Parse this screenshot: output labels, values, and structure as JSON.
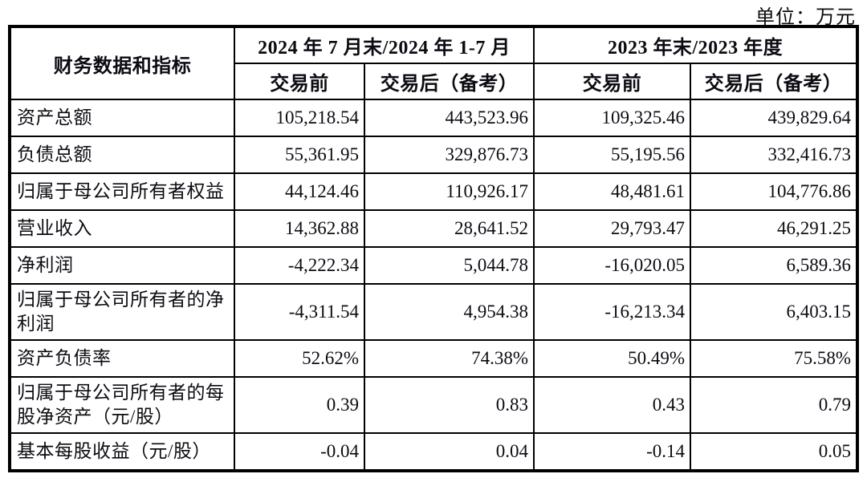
{
  "unit_label": "单位：万元",
  "table": {
    "corner_header": "财务数据和指标",
    "col_groups": [
      {
        "label": "2024 年 7 月末/2024 年 1-7 月",
        "sub": [
          "交易前",
          "交易后（备考）"
        ]
      },
      {
        "label": "2023 年末/2023 年度",
        "sub": [
          "交易前",
          "交易后（备考）"
        ]
      }
    ],
    "rows": [
      {
        "label": "资产总额",
        "values": [
          "105,218.54",
          "443,523.96",
          "109,325.46",
          "439,829.64"
        ]
      },
      {
        "label": "负债总额",
        "values": [
          "55,361.95",
          "329,876.73",
          "55,195.56",
          "332,416.73"
        ]
      },
      {
        "label": "归属于母公司所有者权益",
        "values": [
          "44,124.46",
          "110,926.17",
          "48,481.61",
          "104,776.86"
        ]
      },
      {
        "label": "营业收入",
        "values": [
          "14,362.88",
          "28,641.52",
          "29,793.47",
          "46,291.25"
        ]
      },
      {
        "label": "净利润",
        "values": [
          "-4,222.34",
          "5,044.78",
          "-16,020.05",
          "6,589.36"
        ]
      },
      {
        "label": "归属于母公司所有者的净利润",
        "values": [
          "-4,311.54",
          "4,954.38",
          "-16,213.34",
          "6,403.15"
        ]
      },
      {
        "label": "资产负债率",
        "values": [
          "52.62%",
          "74.38%",
          "50.49%",
          "75.58%"
        ]
      },
      {
        "label": "归属于母公司所有者的每股净资产（元/股）",
        "values": [
          "0.39",
          "0.83",
          "0.43",
          "0.79"
        ]
      },
      {
        "label": "基本每股收益（元/股）",
        "values": [
          "-0.04",
          "0.04",
          "-0.14",
          "0.05"
        ]
      }
    ]
  }
}
